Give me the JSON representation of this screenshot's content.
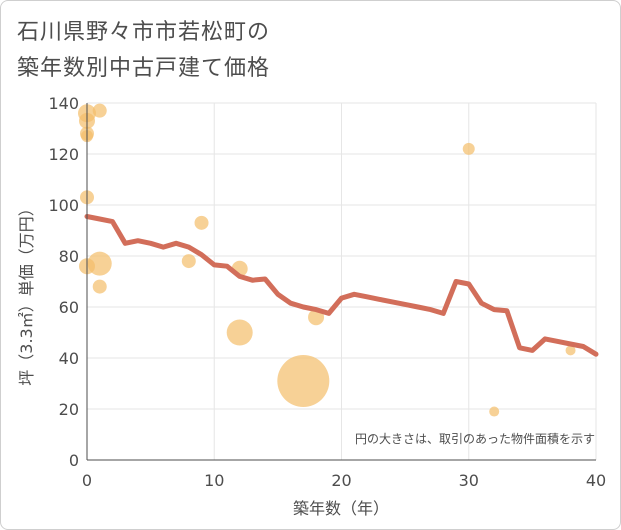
{
  "chart_data": {
    "type": "scatter",
    "title_line1": "石川県野々市市若松町の",
    "title_line2": "築年数別中古戸建て価格",
    "xlabel": "築年数（年）",
    "ylabel": "坪（3.3㎡）単価（万円）",
    "note": "円の大きさは、取引のあった物件面積を示す",
    "xlim": [
      0,
      40
    ],
    "ylim": [
      0,
      140
    ],
    "x_ticks": [
      0,
      10,
      20,
      30,
      40
    ],
    "y_ticks": [
      0,
      20,
      40,
      60,
      80,
      100,
      120,
      140
    ],
    "colors": {
      "bubble": "#f4be6a",
      "line": "#d26e5a",
      "grid": "#e6e6e6",
      "axis": "#4d4d4d"
    },
    "points": [
      {
        "x": 0,
        "y": 136,
        "r": 9
      },
      {
        "x": 0,
        "y": 133,
        "r": 8
      },
      {
        "x": 0,
        "y": 128,
        "r": 7
      },
      {
        "x": 0,
        "y": 127,
        "r": 6
      },
      {
        "x": 1,
        "y": 137,
        "r": 7
      },
      {
        "x": 0,
        "y": 103,
        "r": 7
      },
      {
        "x": 0,
        "y": 76,
        "r": 8
      },
      {
        "x": 1,
        "y": 77,
        "r": 12
      },
      {
        "x": 1,
        "y": 68,
        "r": 7
      },
      {
        "x": 8,
        "y": 78,
        "r": 7
      },
      {
        "x": 9,
        "y": 93,
        "r": 7
      },
      {
        "x": 12,
        "y": 75,
        "r": 8
      },
      {
        "x": 12,
        "y": 50,
        "r": 13
      },
      {
        "x": 17,
        "y": 31,
        "r": 26
      },
      {
        "x": 18,
        "y": 56,
        "r": 8
      },
      {
        "x": 30,
        "y": 122,
        "r": 6
      },
      {
        "x": 32,
        "y": 19,
        "r": 5
      },
      {
        "x": 38,
        "y": 43,
        "r": 5
      }
    ],
    "trend": [
      [
        0,
        95.5
      ],
      [
        1,
        94.5
      ],
      [
        2,
        93.5
      ],
      [
        3,
        85
      ],
      [
        4,
        86
      ],
      [
        5,
        85
      ],
      [
        6,
        83.5
      ],
      [
        7,
        85
      ],
      [
        8,
        83.5
      ],
      [
        9,
        80.5
      ],
      [
        10,
        76.5
      ],
      [
        11,
        76
      ],
      [
        12,
        72
      ],
      [
        13,
        70.5
      ],
      [
        14,
        71
      ],
      [
        15,
        65
      ],
      [
        16,
        61.5
      ],
      [
        17,
        60
      ],
      [
        18,
        59
      ],
      [
        19,
        57.5
      ],
      [
        20,
        63.5
      ],
      [
        21,
        65
      ],
      [
        22,
        64
      ],
      [
        23,
        63
      ],
      [
        24,
        62
      ],
      [
        25,
        61
      ],
      [
        26,
        60
      ],
      [
        27,
        59
      ],
      [
        28,
        57.5
      ],
      [
        29,
        70
      ],
      [
        30,
        69
      ],
      [
        31,
        61.5
      ],
      [
        32,
        59
      ],
      [
        33,
        58.5
      ],
      [
        34,
        44
      ],
      [
        35,
        43
      ],
      [
        36,
        47.5
      ],
      [
        37,
        46.5
      ],
      [
        38,
        45.5
      ],
      [
        39,
        44.5
      ],
      [
        40,
        41.5
      ]
    ]
  }
}
